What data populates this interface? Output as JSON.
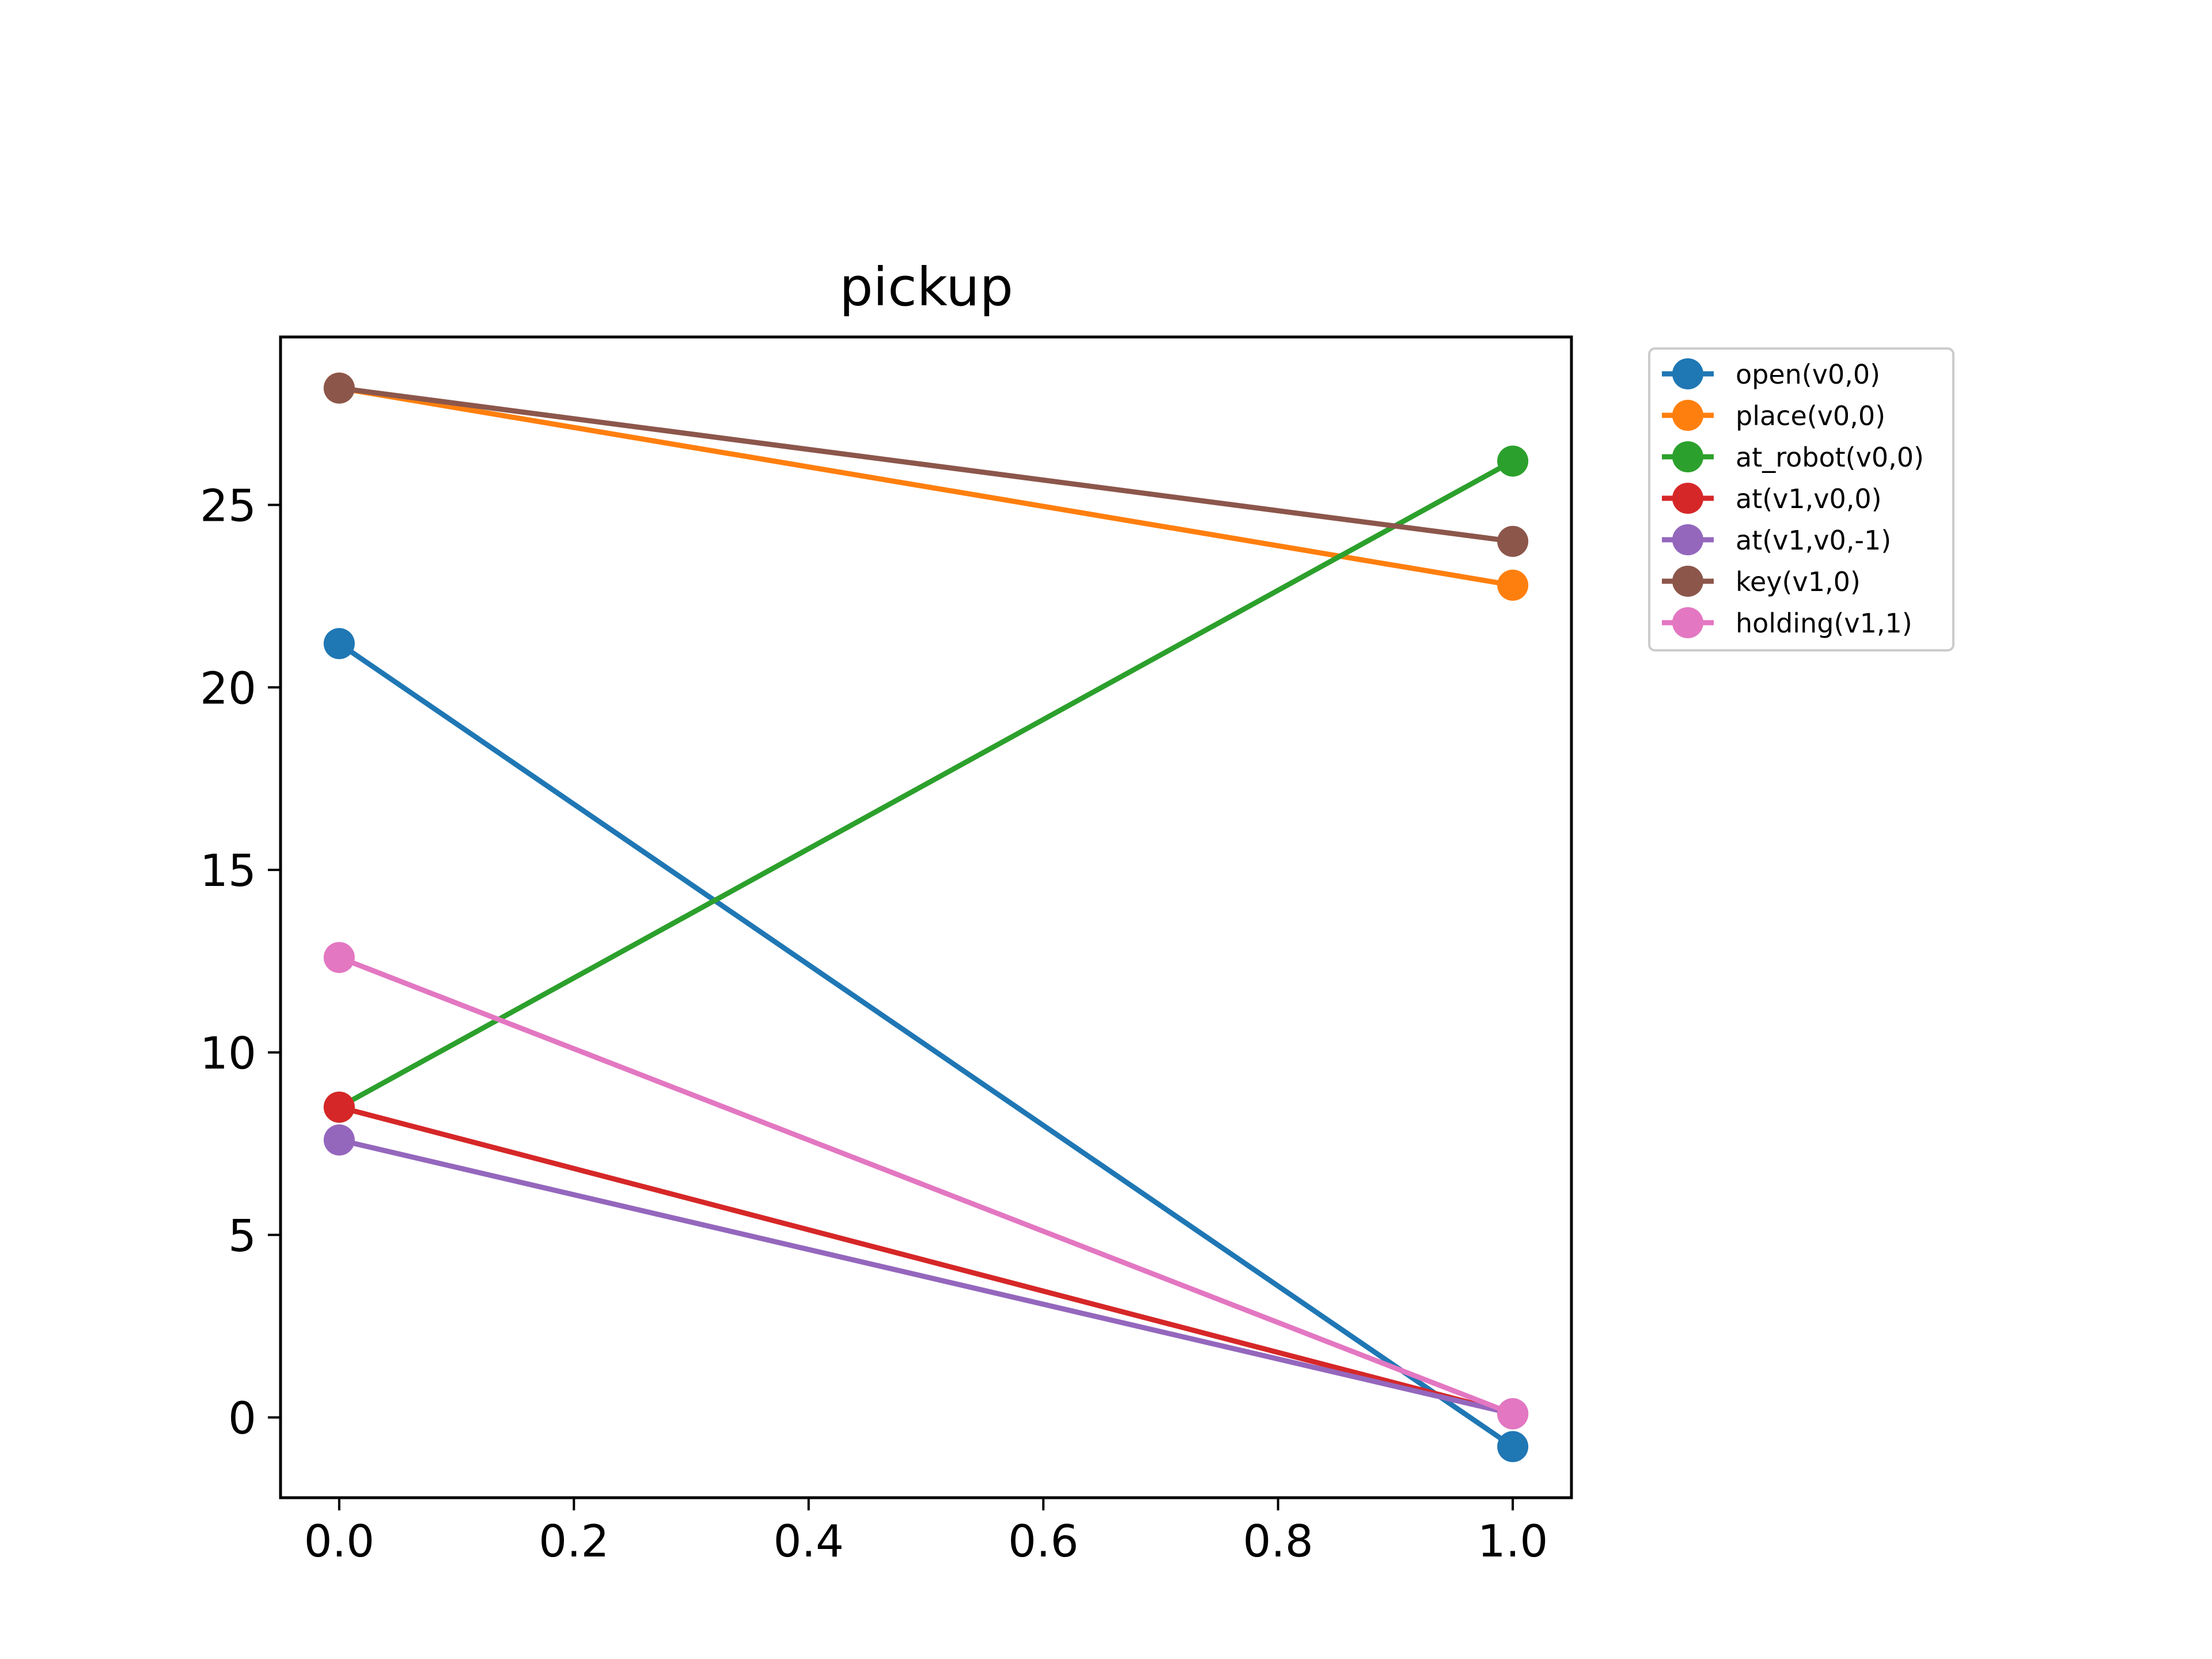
{
  "chart_data": {
    "type": "line",
    "title": "pickup",
    "xlabel": "",
    "ylabel": "",
    "xlim": [
      -0.05,
      1.05
    ],
    "ylim": [
      -2.2,
      29.6
    ],
    "xticks": [
      0.0,
      0.2,
      0.4,
      0.6,
      0.8,
      1.0
    ],
    "xtick_labels": [
      "0.0",
      "0.2",
      "0.4",
      "0.6",
      "0.8",
      "1.0"
    ],
    "yticks": [
      0,
      5,
      10,
      15,
      20,
      25
    ],
    "ytick_labels": [
      "0",
      "5",
      "10",
      "15",
      "20",
      "25"
    ],
    "grid": false,
    "legend_position": "outside-top-right",
    "x": [
      0,
      1
    ],
    "series": [
      {
        "name": "open(v0,0)",
        "color": "#1f77b4",
        "values": [
          21.2,
          -0.8
        ]
      },
      {
        "name": "place(v0,0)",
        "color": "#ff7f0e",
        "values": [
          28.2,
          22.8
        ]
      },
      {
        "name": "at_robot(v0,0)",
        "color": "#2ca02c",
        "values": [
          8.5,
          26.2
        ]
      },
      {
        "name": "at(v1,v0,0)",
        "color": "#d62728",
        "values": [
          8.5,
          0.1
        ]
      },
      {
        "name": "at(v1,v0,-1)",
        "color": "#9467bd",
        "values": [
          7.6,
          0.1
        ]
      },
      {
        "name": "key(v1,0)",
        "color": "#8c564b",
        "values": [
          28.2,
          24.0
        ]
      },
      {
        "name": "holding(v1,1)",
        "color": "#e377c2",
        "values": [
          12.6,
          0.1
        ]
      }
    ]
  }
}
